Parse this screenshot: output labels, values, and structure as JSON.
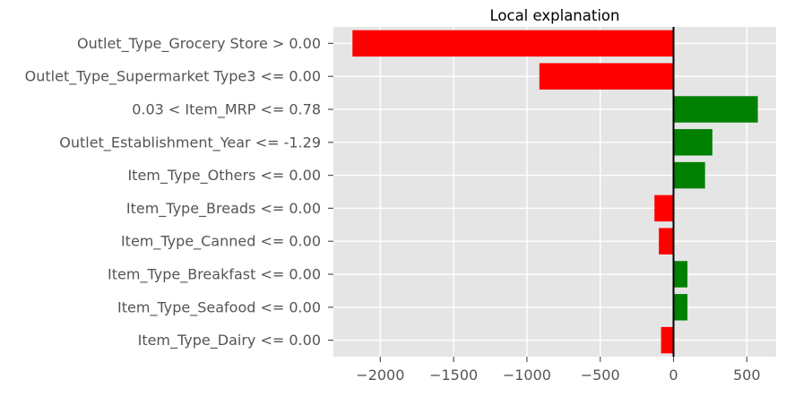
{
  "chart_data": {
    "type": "bar",
    "orientation": "horizontal",
    "title": "Local explanation",
    "xlabel": "",
    "ylabel": "",
    "xlim": [
      -2320,
      700
    ],
    "x_ticks": [
      -2000,
      -1500,
      -1000,
      -500,
      0,
      500
    ],
    "x_tick_labels": [
      "−2000",
      "−1500",
      "−1000",
      "−500",
      "0",
      "500"
    ],
    "grid": true,
    "categories": [
      "Outlet_Type_Grocery Store > 0.00",
      "Outlet_Type_Supermarket Type3 <= 0.00",
      "0.03 < Item_MRP <= 0.78",
      "Outlet_Establishment_Year <= -1.29",
      "Item_Type_Others <= 0.00",
      "Item_Type_Breads <= 0.00",
      "Item_Type_Canned <= 0.00",
      "Item_Type_Breakfast <= 0.00",
      "Item_Type_Seafood <= 0.00",
      "Item_Type_Dairy <= 0.00"
    ],
    "values": [
      -2190,
      -915,
      575,
      265,
      215,
      -130,
      -100,
      95,
      95,
      -85
    ],
    "colors": {
      "positive": "#008000",
      "negative": "#ff0000",
      "background": "#e5e5e5",
      "grid": "#ffffff",
      "zero_line": "#000000"
    }
  }
}
